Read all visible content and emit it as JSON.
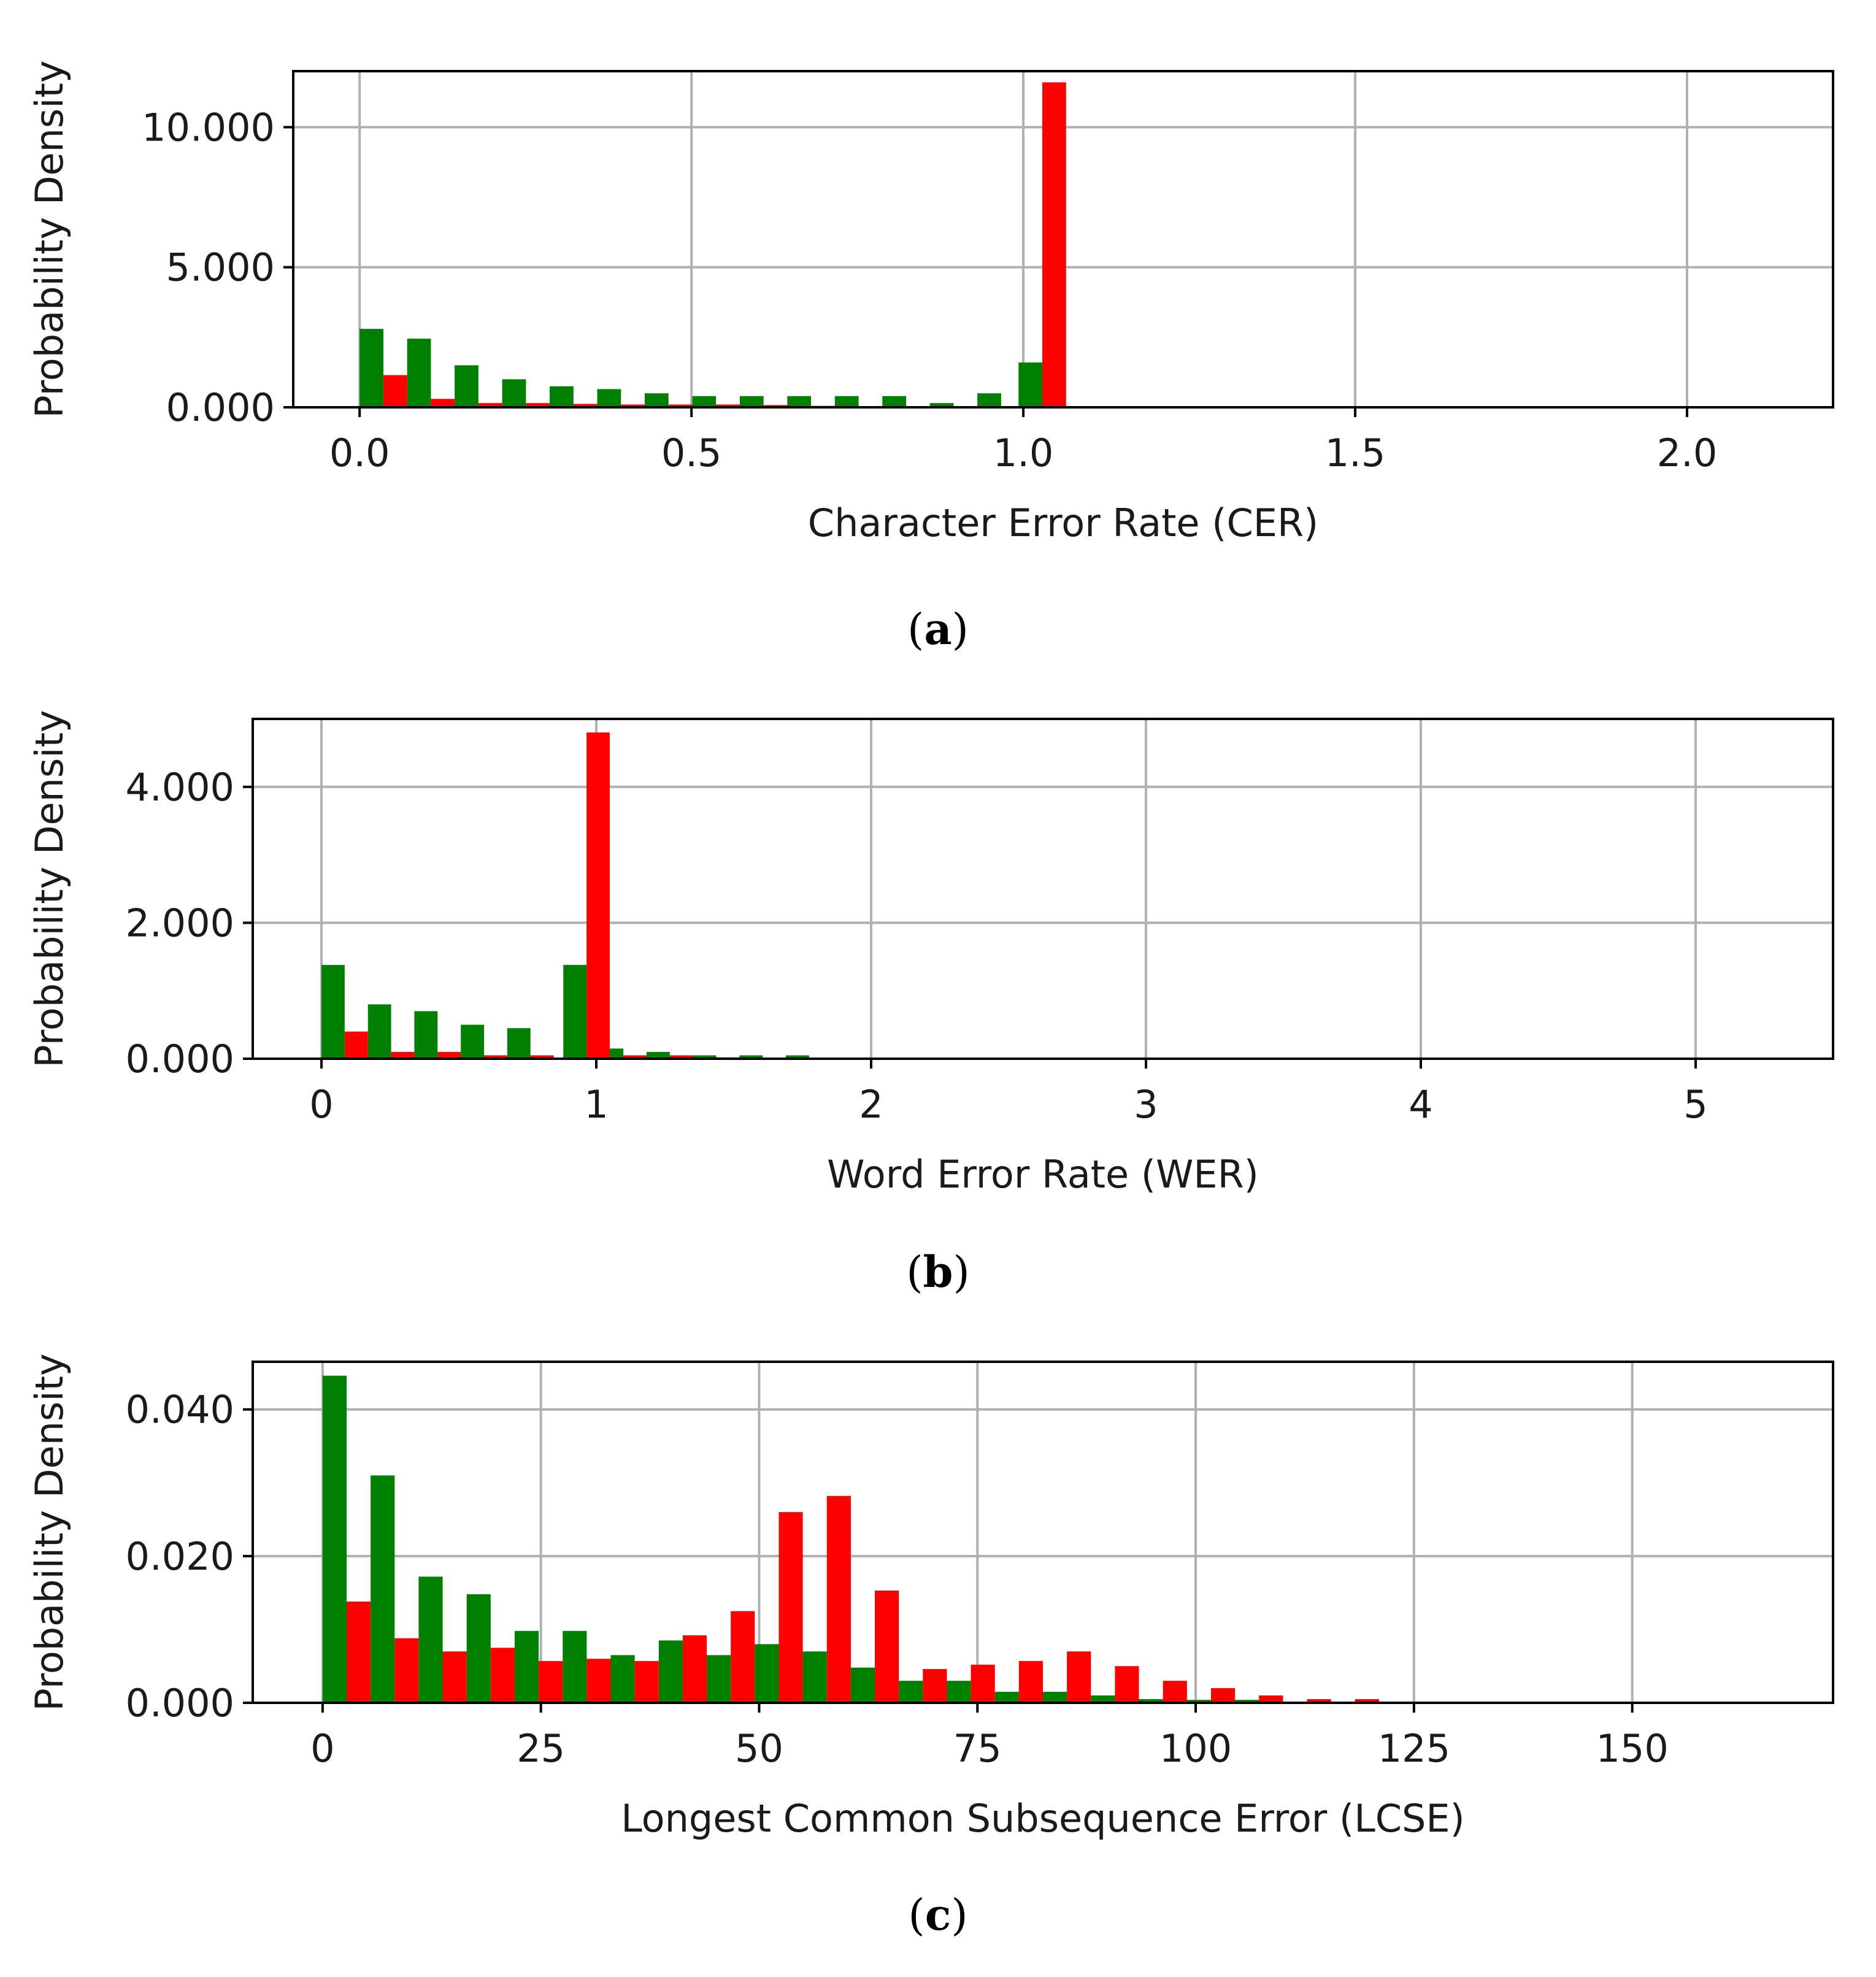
{
  "chart_data": [
    {
      "type": "bar",
      "ylabel": "Probability Density",
      "xlabel": "Character Error Rate (CER)",
      "caption_letter": "a",
      "xlim": [
        -0.1,
        2.22
      ],
      "ylim": [
        0,
        12
      ],
      "xticks": [
        0.0,
        0.5,
        1.0,
        1.5,
        2.0
      ],
      "xtick_labels": [
        "0.0",
        "0.5",
        "1.0",
        "1.5",
        "2.0"
      ],
      "yticks": [
        0,
        5,
        10
      ],
      "ytick_labels": [
        "0.000",
        "5.000",
        "10.000"
      ],
      "grid": true,
      "bin_width": 0.0358,
      "series": [
        {
          "color": "#008000",
          "offset": 0,
          "x": [
            0.0,
            0.0716,
            0.1432,
            0.2148,
            0.2864,
            0.358,
            0.4296,
            0.5012,
            0.5728,
            0.6444,
            0.716,
            0.7876,
            0.8592,
            0.9308,
            0.9928
          ],
          "values": [
            2.8,
            2.45,
            1.5,
            1.0,
            0.75,
            0.65,
            0.5,
            0.4,
            0.4,
            0.4,
            0.4,
            0.4,
            0.15,
            0.5,
            1.6
          ]
        },
        {
          "color": "#ff0000",
          "offset": 1,
          "x": [
            0.0,
            0.0716,
            0.1432,
            0.2148,
            0.2864,
            0.358,
            0.4296,
            0.5012,
            0.5728,
            0.6444,
            0.9928
          ],
          "values": [
            1.15,
            0.3,
            0.15,
            0.15,
            0.12,
            0.1,
            0.1,
            0.1,
            0.08,
            0.05,
            11.6
          ]
        }
      ]
    },
    {
      "type": "bar",
      "ylabel": "Probability Density",
      "xlabel": "Word Error Rate (WER)",
      "caption_letter": "b",
      "xlim": [
        -0.25,
        5.5
      ],
      "ylim": [
        0,
        5
      ],
      "xticks": [
        0,
        1,
        2,
        3,
        4,
        5
      ],
      "xtick_labels": [
        "0",
        "1",
        "2",
        "3",
        "4",
        "5"
      ],
      "yticks": [
        0,
        2,
        4
      ],
      "ytick_labels": [
        "0.000",
        "2.000",
        "4.000"
      ],
      "grid": true,
      "bin_width": 0.0845,
      "series": [
        {
          "color": "#008000",
          "offset": 0,
          "x": [
            0.0,
            0.169,
            0.338,
            0.507,
            0.676,
            0.88,
            1.014,
            1.183,
            1.352,
            1.521,
            1.69
          ],
          "values": [
            1.38,
            0.8,
            0.7,
            0.5,
            0.45,
            1.38,
            0.15,
            0.1,
            0.05,
            0.05,
            0.05
          ]
        },
        {
          "color": "#ff0000",
          "offset": 1,
          "x": [
            0.0,
            0.169,
            0.338,
            0.507,
            0.676,
            0.88,
            1.014,
            1.183,
            1.352
          ],
          "values": [
            0.4,
            0.1,
            0.1,
            0.05,
            0.05,
            4.8,
            0.05,
            0.05,
            0.02
          ]
        }
      ]
    },
    {
      "type": "bar",
      "ylabel": "Probability Density",
      "xlabel": "Longest Common Subsequence Error (LCSE)",
      "caption_letter": "c",
      "xlim": [
        -8,
        173
      ],
      "ylim": [
        0,
        0.0465
      ],
      "xticks": [
        0,
        25,
        50,
        75,
        100,
        125,
        150
      ],
      "xtick_labels": [
        "0",
        "25",
        "50",
        "75",
        "100",
        "125",
        "150"
      ],
      "yticks": [
        0,
        0.02,
        0.04
      ],
      "ytick_labels": [
        "0.000",
        "0.020",
        "0.040"
      ],
      "grid": true,
      "bin_width": 2.75,
      "series": [
        {
          "color": "#008000",
          "offset": 0,
          "x": [
            0,
            5.5,
            11,
            16.5,
            22,
            27.5,
            33,
            38.5,
            44,
            49.5,
            55,
            60.5,
            66,
            71.5,
            77,
            82.5,
            88,
            93.5,
            99,
            104.5
          ],
          "values": [
            0.0446,
            0.031,
            0.0172,
            0.0148,
            0.0098,
            0.0098,
            0.0065,
            0.0085,
            0.0065,
            0.008,
            0.007,
            0.0048,
            0.003,
            0.003,
            0.0015,
            0.0015,
            0.001,
            0.0005,
            0.0004,
            0.0004
          ]
        },
        {
          "color": "#ff0000",
          "offset": 1,
          "x": [
            0,
            5.5,
            11,
            16.5,
            22,
            27.5,
            33,
            38.5,
            44,
            49.5,
            55,
            60.5,
            66,
            71.5,
            77,
            82.5,
            88,
            93.5,
            99,
            104.5,
            110,
            115.5
          ],
          "values": [
            0.0138,
            0.0088,
            0.007,
            0.0075,
            0.0057,
            0.006,
            0.0057,
            0.0092,
            0.0125,
            0.026,
            0.0282,
            0.0153,
            0.0046,
            0.0052,
            0.0057,
            0.007,
            0.005,
            0.003,
            0.002,
            0.001,
            0.0005,
            0.0005
          ]
        }
      ]
    }
  ]
}
